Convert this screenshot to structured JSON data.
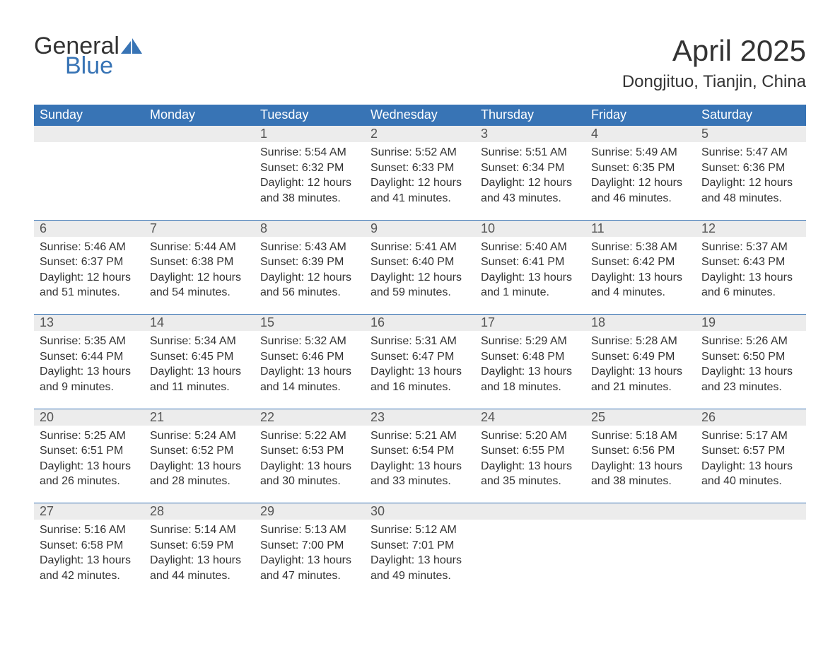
{
  "logo": {
    "word1": "General",
    "word2": "Blue"
  },
  "title": "April 2025",
  "location": "Dongjituo, Tianjin, China",
  "colors": {
    "header_bg": "#3874b5",
    "header_text": "#ffffff",
    "daynum_bg": "#ececec",
    "border_top": "#3874b5",
    "body_text": "#333333",
    "logo_blue": "#3874b5"
  },
  "day_headers": [
    "Sunday",
    "Monday",
    "Tuesday",
    "Wednesday",
    "Thursday",
    "Friday",
    "Saturday"
  ],
  "weeks": [
    {
      "nums": [
        "",
        "",
        "1",
        "2",
        "3",
        "4",
        "5"
      ],
      "cells": [
        "",
        "",
        "Sunrise: 5:54 AM\nSunset: 6:32 PM\nDaylight: 12 hours and 38 minutes.",
        "Sunrise: 5:52 AM\nSunset: 6:33 PM\nDaylight: 12 hours and 41 minutes.",
        "Sunrise: 5:51 AM\nSunset: 6:34 PM\nDaylight: 12 hours and 43 minutes.",
        "Sunrise: 5:49 AM\nSunset: 6:35 PM\nDaylight: 12 hours and 46 minutes.",
        "Sunrise: 5:47 AM\nSunset: 6:36 PM\nDaylight: 12 hours and 48 minutes."
      ]
    },
    {
      "nums": [
        "6",
        "7",
        "8",
        "9",
        "10",
        "11",
        "12"
      ],
      "cells": [
        "Sunrise: 5:46 AM\nSunset: 6:37 PM\nDaylight: 12 hours and 51 minutes.",
        "Sunrise: 5:44 AM\nSunset: 6:38 PM\nDaylight: 12 hours and 54 minutes.",
        "Sunrise: 5:43 AM\nSunset: 6:39 PM\nDaylight: 12 hours and 56 minutes.",
        "Sunrise: 5:41 AM\nSunset: 6:40 PM\nDaylight: 12 hours and 59 minutes.",
        "Sunrise: 5:40 AM\nSunset: 6:41 PM\nDaylight: 13 hours and 1 minute.",
        "Sunrise: 5:38 AM\nSunset: 6:42 PM\nDaylight: 13 hours and 4 minutes.",
        "Sunrise: 5:37 AM\nSunset: 6:43 PM\nDaylight: 13 hours and 6 minutes."
      ]
    },
    {
      "nums": [
        "13",
        "14",
        "15",
        "16",
        "17",
        "18",
        "19"
      ],
      "cells": [
        "Sunrise: 5:35 AM\nSunset: 6:44 PM\nDaylight: 13 hours and 9 minutes.",
        "Sunrise: 5:34 AM\nSunset: 6:45 PM\nDaylight: 13 hours and 11 minutes.",
        "Sunrise: 5:32 AM\nSunset: 6:46 PM\nDaylight: 13 hours and 14 minutes.",
        "Sunrise: 5:31 AM\nSunset: 6:47 PM\nDaylight: 13 hours and 16 minutes.",
        "Sunrise: 5:29 AM\nSunset: 6:48 PM\nDaylight: 13 hours and 18 minutes.",
        "Sunrise: 5:28 AM\nSunset: 6:49 PM\nDaylight: 13 hours and 21 minutes.",
        "Sunrise: 5:26 AM\nSunset: 6:50 PM\nDaylight: 13 hours and 23 minutes."
      ]
    },
    {
      "nums": [
        "20",
        "21",
        "22",
        "23",
        "24",
        "25",
        "26"
      ],
      "cells": [
        "Sunrise: 5:25 AM\nSunset: 6:51 PM\nDaylight: 13 hours and 26 minutes.",
        "Sunrise: 5:24 AM\nSunset: 6:52 PM\nDaylight: 13 hours and 28 minutes.",
        "Sunrise: 5:22 AM\nSunset: 6:53 PM\nDaylight: 13 hours and 30 minutes.",
        "Sunrise: 5:21 AM\nSunset: 6:54 PM\nDaylight: 13 hours and 33 minutes.",
        "Sunrise: 5:20 AM\nSunset: 6:55 PM\nDaylight: 13 hours and 35 minutes.",
        "Sunrise: 5:18 AM\nSunset: 6:56 PM\nDaylight: 13 hours and 38 minutes.",
        "Sunrise: 5:17 AM\nSunset: 6:57 PM\nDaylight: 13 hours and 40 minutes."
      ]
    },
    {
      "nums": [
        "27",
        "28",
        "29",
        "30",
        "",
        "",
        ""
      ],
      "cells": [
        "Sunrise: 5:16 AM\nSunset: 6:58 PM\nDaylight: 13 hours and 42 minutes.",
        "Sunrise: 5:14 AM\nSunset: 6:59 PM\nDaylight: 13 hours and 44 minutes.",
        "Sunrise: 5:13 AM\nSunset: 7:00 PM\nDaylight: 13 hours and 47 minutes.",
        "Sunrise: 5:12 AM\nSunset: 7:01 PM\nDaylight: 13 hours and 49 minutes.",
        "",
        "",
        ""
      ]
    }
  ]
}
